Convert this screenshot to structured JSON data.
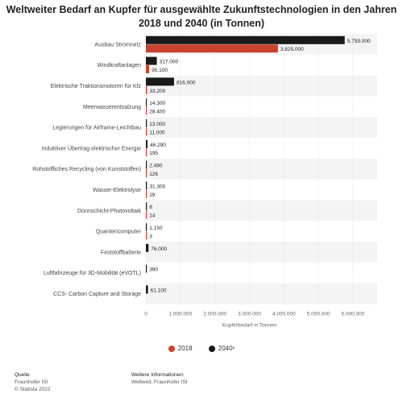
{
  "header": {
    "title": "Weltweiter Bedarf an Kupfer für ausgewählte Zukunftstechnologien in den Jahren 2018 und 2040 (in Tonnen)"
  },
  "chart_data": {
    "type": "bar",
    "orientation": "horizontal",
    "categories": [
      "Ausbau Stromnetz",
      "Windkraftanlagen",
      "Elektrische Traktionsmotoren für Kfz",
      "Meerwasserentsalzung",
      "Legierungen für Airframe-Leichtbau",
      "Induktiver Übertrag elektrischer Energie",
      "Rohstoffliches Recycling (von Kunststoffen)",
      "Wasser-Elektrolyse",
      "Dünnschicht-Photovoltaik",
      "Quantencomputer",
      "Feststoffbatterie",
      "Luftfahrzeuge für 3D-Mobilität (eVOTL)",
      "CCS- Carbon Capture and Storage"
    ],
    "series": [
      {
        "name": "2040¹",
        "color": "#1a1a1a",
        "values": [
          5759000,
          317000,
          816000,
          14300,
          13000,
          46290,
          2490,
          31300,
          8,
          1150,
          76000,
          390,
          61100
        ],
        "labels": [
          "5.759.000",
          "317.000",
          "816.000",
          "14.300",
          "13.000",
          "46.290",
          "2.490",
          "31.300",
          "8",
          "1.150",
          "76.000",
          "390",
          "61.100"
        ]
      },
      {
        "name": "2018",
        "color": "#c9422f",
        "values": [
          3825000,
          95100,
          33200,
          28400,
          11000,
          195,
          126,
          29,
          14,
          3,
          null,
          null,
          null
        ],
        "labels": [
          "3.825.000",
          "95.100",
          "33.200",
          "28.400",
          "11.000",
          "195",
          "126",
          "29",
          "14",
          "3",
          "",
          "",
          ""
        ]
      }
    ],
    "xlabel": "Kupferbedarf in Tonnen",
    "xlim": [
      0,
      6000000
    ],
    "ticks": [
      0,
      1000000,
      2000000,
      3000000,
      4000000,
      5000000,
      6000000
    ],
    "tick_labels": [
      "0",
      "1.000.000",
      "2.000.000",
      "3.000.000",
      "4.000.000",
      "5.000.000",
      "6.000.000"
    ],
    "legend_position": "bottom"
  },
  "legend": {
    "items": [
      {
        "label": "2018",
        "color": "#c9422f"
      },
      {
        "label": "2040¹",
        "color": "#1a1a1a"
      }
    ]
  },
  "footer": {
    "source_head": "Quelle",
    "source_name": "Fraunhofer ISI",
    "copyright": "© Statista 2022",
    "info_head": "Weitere Informationen:",
    "info_text": "Weltweit; Fraunhofer ISI"
  }
}
